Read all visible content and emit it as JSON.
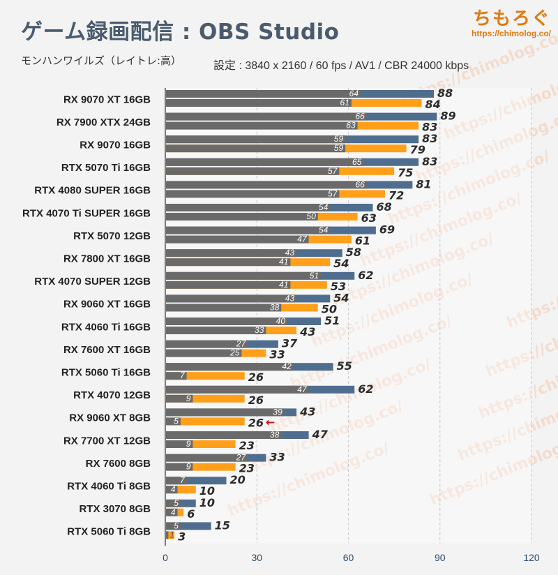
{
  "header": {
    "title": "ゲーム録画配信 : OBS Studio",
    "subtitle": "モンハンワイルズ（レイトレ:高）",
    "settings": "設定 : 3840 x 2160 / 60 fps / AV1 / CBR 24000 kbps"
  },
  "logo": {
    "text": "ちもろぐ",
    "url": "https://chimolog.co/"
  },
  "watermark": "https://chimolog.co/",
  "colors": {
    "blue_bar": "#4f6e8f",
    "gray_bar": "#6a6a6a",
    "orange_bar": "#ff9f1a",
    "axis": "#2a4a6a",
    "grid": "#cfcfcf",
    "arrow": "#cc1111"
  },
  "chart_data": {
    "type": "bar",
    "orientation": "horizontal",
    "categories": [
      "RX 9070 XT 16GB",
      "RX 7900 XTX 24GB",
      "RX 9070 16GB",
      "RTX 5070 Ti 16GB",
      "RTX 4080 SUPER 16GB",
      "RTX 4070 Ti SUPER 16GB",
      "RTX 5070 12GB",
      "RX 7800 XT 16GB",
      "RTX 4070 SUPER 12GB",
      "RX 9060 XT 16GB",
      "RTX 4060 Ti 16GB",
      "RX 7600 XT 16GB",
      "RTX 5060 Ti 16GB",
      "RTX 4070 12GB",
      "RX 9060 XT 8GB",
      "RX 7700 XT 12GB",
      "RX 7600 8GB",
      "RTX 4060 Ti 8GB",
      "RTX 3070 8GB",
      "RTX 5060 Ti 8GB"
    ],
    "series": [
      {
        "values": [
          88,
          89,
          83,
          83,
          81,
          68,
          69,
          58,
          62,
          54,
          51,
          37,
          55,
          62,
          43,
          47,
          33,
          20,
          10,
          15
        ]
      },
      {
        "values": [
          64,
          66,
          59,
          65,
          66,
          54,
          54,
          43,
          51,
          43,
          40,
          27,
          42,
          47,
          39,
          38,
          27,
          7,
          5,
          5
        ]
      },
      {
        "values": [
          84,
          83,
          79,
          75,
          72,
          63,
          61,
          54,
          53,
          50,
          43,
          33,
          26,
          26,
          26,
          23,
          23,
          10,
          6,
          3
        ]
      },
      {
        "values": [
          61,
          63,
          59,
          57,
          57,
          50,
          47,
          41,
          41,
          38,
          33,
          25,
          7,
          9,
          5,
          9,
          9,
          4,
          4,
          1
        ]
      }
    ],
    "xlim": [
      0,
      120
    ],
    "xticks": [
      0,
      30,
      60,
      90,
      120
    ],
    "grid": true,
    "highlight_category": "RX 9060 XT 8GB",
    "highlight_marker": "←"
  }
}
